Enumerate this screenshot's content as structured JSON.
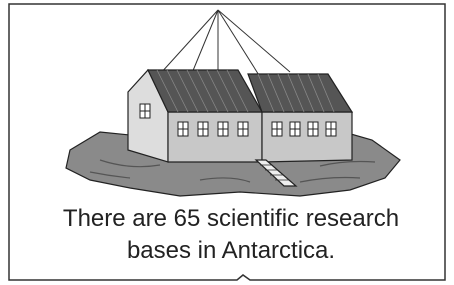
{
  "caption": {
    "line1": "There are 65 scientific research",
    "line2": "bases in Antarctica."
  }
}
